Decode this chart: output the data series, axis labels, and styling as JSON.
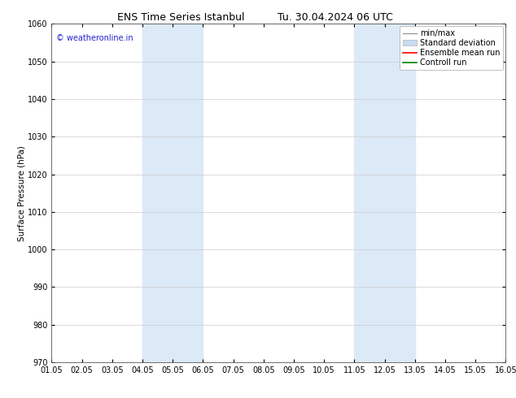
{
  "title_left": "ENS Time Series Istanbul",
  "title_right": "Tu. 30.04.2024 06 UTC",
  "ylabel": "Surface Pressure (hPa)",
  "xlabel": "",
  "ylim": [
    970,
    1060
  ],
  "yticks": [
    970,
    980,
    990,
    1000,
    1010,
    1020,
    1030,
    1040,
    1050,
    1060
  ],
  "xlim": [
    0,
    15
  ],
  "xtick_labels": [
    "01.05",
    "02.05",
    "03.05",
    "04.05",
    "05.05",
    "06.05",
    "07.05",
    "08.05",
    "09.05",
    "10.05",
    "11.05",
    "12.05",
    "13.05",
    "14.05",
    "15.05",
    "16.05"
  ],
  "xtick_positions": [
    0,
    1,
    2,
    3,
    4,
    5,
    6,
    7,
    8,
    9,
    10,
    11,
    12,
    13,
    14,
    15
  ],
  "shaded_bands": [
    {
      "x_start": 3,
      "x_end": 5,
      "color": "#dce9f7"
    },
    {
      "x_start": 10,
      "x_end": 12,
      "color": "#dce9f7"
    }
  ],
  "watermark_text": "© weatheronline.in",
  "watermark_color": "#2222cc",
  "watermark_fontsize": 7,
  "background_color": "#ffffff",
  "plot_bg_color": "#ffffff",
  "grid_color": "#cccccc",
  "legend_entries": [
    {
      "label": "min/max",
      "color": "#999999",
      "type": "minmax"
    },
    {
      "label": "Standard deviation",
      "color": "#c8ddf0",
      "type": "band"
    },
    {
      "label": "Ensemble mean run",
      "color": "#ff0000",
      "type": "line"
    },
    {
      "label": "Controll run",
      "color": "#008000",
      "type": "line"
    }
  ],
  "title_fontsize": 9,
  "axis_label_fontsize": 7.5,
  "tick_fontsize": 7,
  "legend_fontsize": 7
}
